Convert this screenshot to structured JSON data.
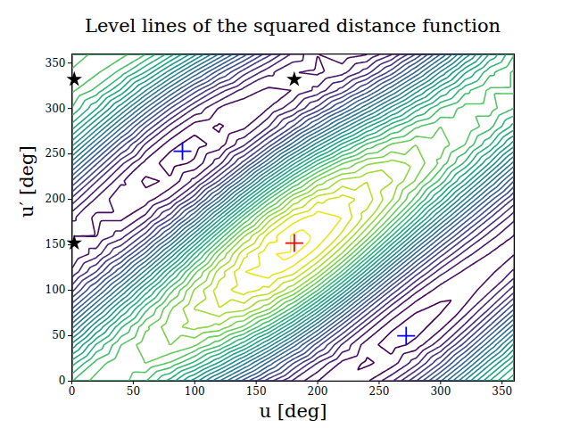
{
  "chart_data": {
    "type": "contour",
    "title": "Level lines of the squared distance function",
    "xlabel": "u [deg]",
    "ylabel": "u′ [deg]",
    "xlim": [
      0,
      360
    ],
    "ylim": [
      0,
      360
    ],
    "xticks": [
      0,
      50,
      100,
      150,
      200,
      250,
      300,
      350
    ],
    "yticks": [
      0,
      50,
      100,
      150,
      200,
      250,
      300,
      350
    ],
    "grid": false,
    "x": [
      0,
      20,
      40,
      60,
      80,
      100,
      120,
      140,
      160,
      180,
      200,
      220,
      240,
      260,
      280,
      300,
      320,
      340,
      360
    ],
    "y": [
      0,
      20,
      40,
      60,
      80,
      100,
      120,
      140,
      160,
      180,
      200,
      220,
      240,
      260,
      280,
      300,
      320,
      340,
      360
    ],
    "z": [
      [
        10.98,
        11.73,
        11.72,
        11.03,
        9.79,
        8.21,
        6.48,
        4.76,
        3.19,
        1.89,
        1.0,
        0.65,
        0.94,
        1.91,
        3.49,
        5.48,
        7.61,
        9.54,
        10.98
      ],
      [
        9.77,
        11.19,
        11.95,
        12.01,
        11.44,
        10.36,
        8.9,
        7.18,
        5.34,
        3.54,
        1.98,
        0.87,
        0.4,
        0.71,
        1.79,
        3.52,
        5.64,
        7.84,
        9.77
      ],
      [
        8.15,
        10.06,
        11.49,
        12.31,
        12.51,
        12.09,
        11.12,
        9.66,
        7.83,
        5.77,
        3.71,
        1.93,
        0.71,
        0.25,
        0.66,
        1.89,
        3.76,
        5.95,
        8.15
      ],
      [
        6.3,
        8.48,
        10.4,
        11.89,
        12.85,
        13.19,
        12.89,
        11.93,
        10.36,
        8.3,
        5.98,
        3.7,
        1.81,
        0.59,
        0.24,
        0.81,
        2.17,
        4.1,
        6.3
      ],
      [
        4.45,
        6.63,
        8.82,
        10.81,
        12.43,
        13.54,
        13.99,
        13.7,
        12.63,
        10.83,
        8.51,
        5.97,
        3.58,
        1.69,
        0.58,
        0.39,
        1.09,
        2.52,
        4.45
      ],
      [
        2.83,
        4.74,
        6.93,
        9.18,
        11.3,
        13.08,
        14.3,
        14.76,
        14.35,
        13.06,
        11.0,
        8.46,
        5.8,
        3.42,
        1.64,
        0.69,
        0.63,
        1.39,
        2.83
      ],
      [
        1.62,
        3.04,
        4.96,
        7.22,
        9.6,
        11.87,
        13.76,
        14.99,
        15.34,
        14.71,
        13.15,
        10.87,
        8.22,
        5.57,
        3.3,
        1.67,
        0.85,
        0.85,
        1.62
      ],
      [
        0.98,
        1.73,
        3.16,
        5.15,
        7.53,
        10.07,
        12.45,
        14.35,
        15.46,
        15.59,
        14.7,
        12.92,
        10.52,
        7.88,
        5.34,
        3.22,
        1.73,
        0.97,
        0.98
      ],
      [
        0.98,
        0.97,
        1.73,
        3.22,
        5.34,
        7.88,
        10.52,
        12.92,
        14.7,
        15.59,
        15.46,
        14.35,
        12.45,
        10.07,
        7.53,
        5.15,
        3.16,
        1.73,
        0.98
      ],
      [
        1.62,
        0.85,
        0.85,
        1.67,
        3.3,
        5.57,
        8.22,
        10.87,
        13.15,
        14.71,
        15.34,
        14.99,
        13.76,
        11.87,
        9.6,
        7.22,
        4.96,
        3.04,
        1.62
      ],
      [
        2.83,
        1.39,
        0.63,
        0.69,
        1.64,
        3.42,
        5.8,
        8.46,
        11.0,
        13.06,
        14.35,
        14.76,
        14.3,
        13.08,
        11.3,
        9.18,
        6.93,
        4.74,
        2.83
      ],
      [
        4.45,
        2.52,
        1.09,
        0.39,
        0.58,
        1.69,
        3.58,
        5.97,
        8.51,
        10.83,
        12.63,
        13.7,
        13.99,
        13.54,
        12.43,
        10.81,
        8.82,
        6.63,
        4.45
      ],
      [
        6.3,
        4.1,
        2.17,
        0.81,
        0.24,
        0.59,
        1.81,
        3.7,
        5.98,
        8.3,
        10.36,
        11.93,
        12.89,
        13.19,
        12.85,
        11.89,
        10.4,
        8.48,
        6.3
      ],
      [
        8.15,
        5.95,
        3.76,
        1.89,
        0.66,
        0.25,
        0.71,
        1.93,
        3.71,
        5.77,
        7.83,
        9.66,
        11.12,
        12.09,
        12.51,
        12.31,
        11.49,
        10.06,
        8.15
      ],
      [
        9.77,
        7.84,
        5.64,
        3.52,
        1.79,
        0.71,
        0.4,
        0.87,
        1.98,
        3.54,
        5.34,
        7.18,
        8.9,
        10.36,
        11.44,
        12.01,
        11.95,
        11.19,
        9.77
      ],
      [
        10.98,
        9.54,
        7.61,
        5.48,
        3.49,
        1.91,
        0.94,
        0.65,
        1.0,
        1.89,
        3.19,
        4.76,
        6.48,
        8.21,
        9.79,
        11.03,
        11.72,
        11.73,
        10.98
      ],
      [
        11.62,
        10.85,
        9.42,
        7.55,
        5.56,
        3.72,
        2.25,
        1.29,
        0.88,
        1.01,
        1.64,
        2.72,
        4.18,
        5.91,
        7.75,
        9.48,
        10.84,
        11.61,
        11.62
      ],
      [
        11.62,
        11.61,
        10.84,
        9.48,
        7.75,
        5.91,
        4.18,
        2.72,
        1.64,
        1.01,
        0.88,
        1.29,
        2.25,
        3.72,
        5.56,
        7.55,
        9.42,
        10.85,
        11.62
      ],
      [
        10.98,
        11.73,
        11.72,
        11.03,
        9.79,
        8.21,
        6.48,
        4.76,
        3.19,
        1.89,
        1.0,
        0.65,
        0.94,
        1.91,
        3.49,
        5.48,
        7.61,
        9.54,
        10.98
      ]
    ],
    "levels": [
      0.5,
      1,
      1.5,
      2,
      2.5,
      3,
      3.5,
      4,
      4.5,
      5,
      5.5,
      6,
      6.5,
      7,
      7.5,
      8,
      8.5,
      9,
      9.5,
      10,
      10.5,
      11,
      11.5,
      12,
      12.5,
      13,
      13.5,
      14,
      14.5,
      15,
      15.5
    ],
    "markers": [
      {
        "x": [
          181
        ],
        "y": [
          152
        ],
        "color": "red",
        "marker": "plus"
      },
      {
        "x": [
          90,
          272
        ],
        "y": [
          253,
          50
        ],
        "color": "blue",
        "marker": "plus"
      },
      {
        "x": [
          2,
          2,
          181
        ],
        "y": [
          332,
          152,
          332
        ],
        "color": "black",
        "marker": "star"
      }
    ]
  }
}
